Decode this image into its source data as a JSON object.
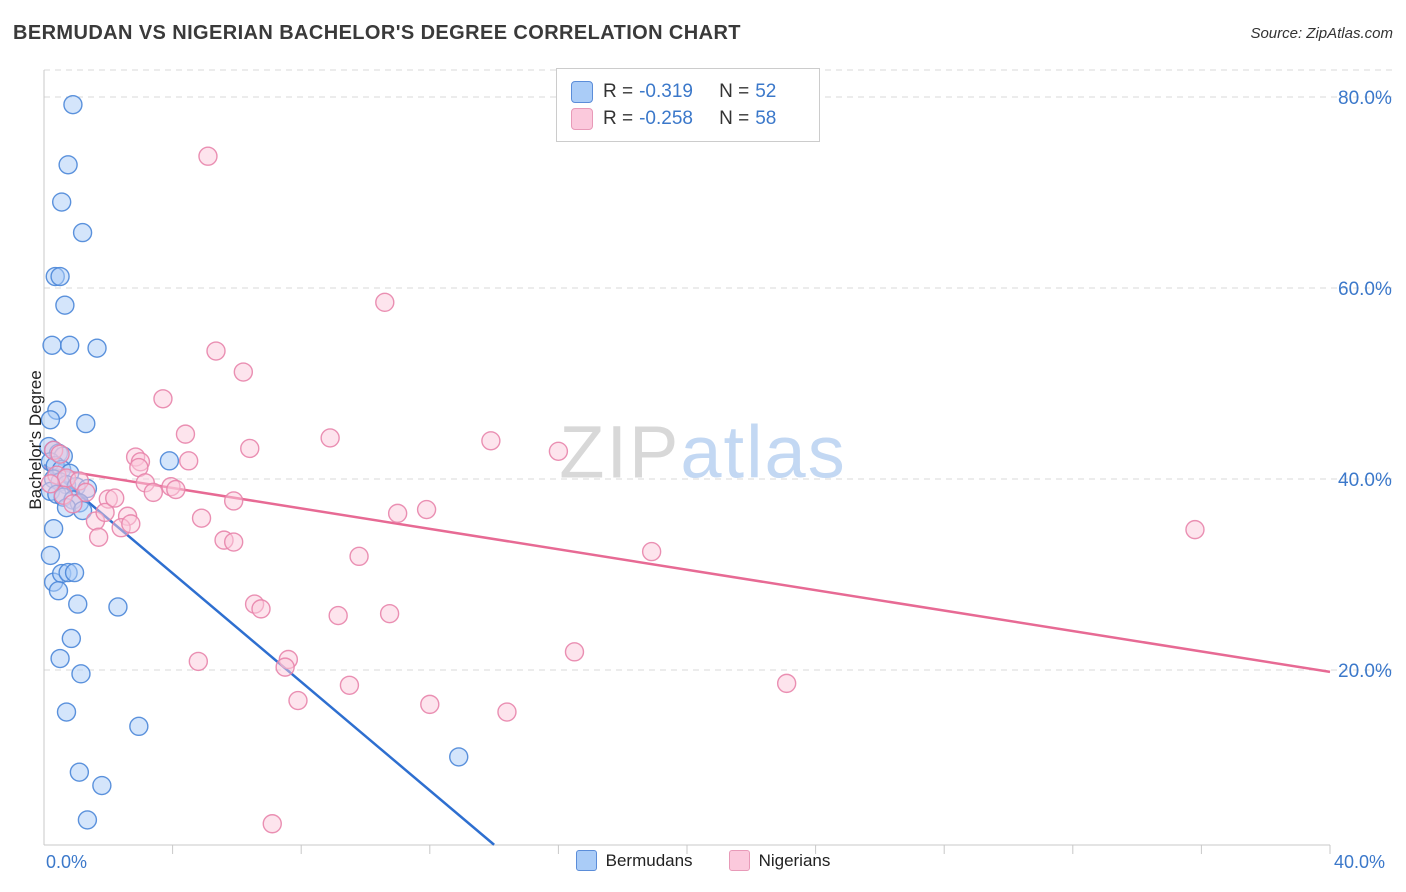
{
  "header": {
    "title": "BERMUDAN VS NIGERIAN BACHELOR'S DEGREE CORRELATION CHART",
    "source": "Source: ZipAtlas.com"
  },
  "watermark": {
    "part1": "ZIP",
    "part2": "atlas"
  },
  "stats_legend": {
    "rows": [
      {
        "series": "Bermudans",
        "r_label": "R =",
        "r_value": "-0.319",
        "n_label": "N =",
        "n_value": "52",
        "color": "#aaccf7"
      },
      {
        "series": "Nigerians",
        "r_label": "R =",
        "r_value": "-0.258",
        "n_label": "N =",
        "n_value": "58",
        "color": "#fbc9dc"
      }
    ]
  },
  "bottom_legend": {
    "items": [
      {
        "label": "Bermudans"
      },
      {
        "label": "Nigerians"
      }
    ]
  },
  "axes": {
    "y_label": "Bachelor's Degree",
    "x_min_label": "0.0%",
    "x_max_label": "40.0%",
    "y_tick_labels": [
      "20.0%",
      "40.0%",
      "60.0%",
      "80.0%"
    ]
  },
  "colors": {
    "blue_fill": "#aaccf7",
    "blue_stroke": "#4a86d8",
    "blue_line": "#2e6fd0",
    "pink_fill": "#fbc9dc",
    "pink_stroke": "#e884ab",
    "pink_line": "#e76a94",
    "grid": "#d9d9d9",
    "axis": "#c8c8c8",
    "tick_text": "#3b78ca"
  },
  "chart_data": {
    "type": "scatter",
    "title": "BERMUDAN VS NIGERIAN BACHELOR'S DEGREE CORRELATION CHART",
    "xlabel": "",
    "ylabel": "Bachelor's Degree",
    "xlim": [
      0,
      40
    ],
    "ylim": [
      0,
      83
    ],
    "x_units": "percent",
    "y_units": "percent",
    "grid": "horizontal-dashed",
    "y_ticks": [
      20,
      40,
      60,
      80
    ],
    "x_ticks": [
      4,
      8,
      12,
      16,
      20,
      24,
      28,
      32,
      36,
      40
    ],
    "series": [
      {
        "name": "Bermudans",
        "r": -0.319,
        "n": 52,
        "points": [
          [
            0.9,
            79.2
          ],
          [
            0.75,
            72.9
          ],
          [
            0.55,
            69.0
          ],
          [
            1.2,
            65.8
          ],
          [
            0.35,
            61.2
          ],
          [
            0.5,
            61.2
          ],
          [
            0.65,
            58.2
          ],
          [
            0.25,
            54.0
          ],
          [
            0.8,
            54.0
          ],
          [
            1.65,
            53.7
          ],
          [
            0.4,
            47.2
          ],
          [
            0.2,
            46.2
          ],
          [
            1.3,
            45.8
          ],
          [
            3.9,
            41.9
          ],
          [
            0.15,
            43.4
          ],
          [
            0.3,
            43.0
          ],
          [
            0.45,
            42.7
          ],
          [
            0.6,
            42.4
          ],
          [
            0.2,
            41.8
          ],
          [
            0.35,
            41.4
          ],
          [
            0.55,
            41.0
          ],
          [
            0.8,
            40.6
          ],
          [
            0.3,
            40.0
          ],
          [
            0.5,
            39.7
          ],
          [
            0.7,
            39.4
          ],
          [
            1.0,
            39.2
          ],
          [
            1.35,
            39.0
          ],
          [
            0.2,
            38.7
          ],
          [
            0.4,
            38.4
          ],
          [
            0.6,
            38.1
          ],
          [
            0.9,
            37.8
          ],
          [
            1.1,
            37.5
          ],
          [
            0.7,
            37.0
          ],
          [
            1.2,
            36.7
          ],
          [
            0.3,
            34.8
          ],
          [
            0.2,
            32.0
          ],
          [
            0.3,
            29.2
          ],
          [
            0.55,
            30.1
          ],
          [
            0.75,
            30.2
          ],
          [
            0.95,
            30.2
          ],
          [
            0.45,
            28.3
          ],
          [
            1.05,
            26.9
          ],
          [
            2.3,
            26.6
          ],
          [
            0.85,
            23.3
          ],
          [
            0.5,
            21.2
          ],
          [
            1.15,
            19.6
          ],
          [
            0.7,
            15.6
          ],
          [
            2.95,
            14.1
          ],
          [
            1.1,
            9.3
          ],
          [
            1.8,
            7.9
          ],
          [
            1.35,
            4.3
          ],
          [
            12.9,
            10.9
          ]
        ],
        "trend_line": {
          "x1": 0,
          "y1": 41.5,
          "x2": 14.0,
          "y2": 1.7
        }
      },
      {
        "name": "Nigerians",
        "r": -0.258,
        "n": 58,
        "points": [
          [
            5.1,
            73.8
          ],
          [
            10.6,
            58.5
          ],
          [
            5.35,
            53.4
          ],
          [
            6.2,
            51.2
          ],
          [
            3.7,
            48.4
          ],
          [
            4.4,
            44.7
          ],
          [
            8.9,
            44.3
          ],
          [
            13.9,
            44.0
          ],
          [
            16.0,
            42.9
          ],
          [
            6.4,
            43.2
          ],
          [
            0.3,
            43.0
          ],
          [
            0.5,
            42.6
          ],
          [
            2.85,
            42.3
          ],
          [
            3.0,
            41.8
          ],
          [
            2.95,
            41.2
          ],
          [
            4.5,
            41.9
          ],
          [
            0.4,
            40.4
          ],
          [
            0.7,
            40.1
          ],
          [
            1.1,
            39.8
          ],
          [
            3.15,
            39.6
          ],
          [
            3.95,
            39.2
          ],
          [
            4.1,
            38.9
          ],
          [
            1.3,
            38.6
          ],
          [
            0.6,
            38.3
          ],
          [
            2.0,
            37.9
          ],
          [
            5.9,
            37.7
          ],
          [
            0.9,
            37.4
          ],
          [
            11.0,
            36.4
          ],
          [
            11.9,
            36.8
          ],
          [
            2.6,
            36.1
          ],
          [
            1.6,
            35.6
          ],
          [
            4.9,
            35.9
          ],
          [
            2.4,
            34.9
          ],
          [
            1.7,
            33.9
          ],
          [
            5.6,
            33.6
          ],
          [
            5.9,
            33.4
          ],
          [
            35.8,
            34.7
          ],
          [
            18.9,
            32.4
          ],
          [
            9.8,
            31.9
          ],
          [
            6.55,
            26.9
          ],
          [
            6.75,
            26.4
          ],
          [
            9.15,
            25.7
          ],
          [
            10.75,
            25.9
          ],
          [
            7.6,
            21.1
          ],
          [
            4.8,
            20.9
          ],
          [
            7.5,
            20.3
          ],
          [
            16.5,
            21.9
          ],
          [
            9.5,
            18.4
          ],
          [
            23.1,
            18.6
          ],
          [
            7.9,
            16.8
          ],
          [
            12.0,
            16.4
          ],
          [
            14.4,
            15.6
          ],
          [
            7.1,
            3.9
          ],
          [
            0.2,
            39.5
          ],
          [
            1.9,
            36.5
          ],
          [
            2.2,
            38.0
          ],
          [
            3.4,
            38.6
          ],
          [
            2.7,
            35.3
          ]
        ],
        "trend_line": {
          "x1": 0,
          "y1": 41.2,
          "x2": 40,
          "y2": 19.8
        }
      }
    ]
  }
}
